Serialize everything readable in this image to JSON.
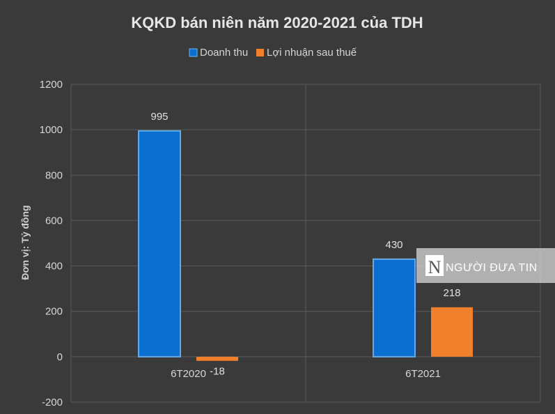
{
  "chart_data": {
    "type": "bar",
    "title": "KQKD bán niên năm 2020-2021 của TDH",
    "ylabel": "Đơn vị: Tỷ đồng",
    "xlabel": "",
    "categories": [
      "6T2020",
      "6T2021"
    ],
    "series": [
      {
        "name": "Doanh thu",
        "values": [
          995,
          430
        ],
        "color": "#0a6fd1"
      },
      {
        "name": "Lợi nhuận sau thuế",
        "values": [
          -18,
          218
        ],
        "color": "#f0802c"
      }
    ],
    "ylim": [
      -200,
      1200
    ],
    "yticks": [
      -200,
      0,
      200,
      400,
      600,
      800,
      1000,
      1200
    ],
    "grid": true,
    "legend_position": "top"
  },
  "watermark": {
    "letter": "N",
    "text": "NGƯỜI ĐƯA TIN"
  }
}
